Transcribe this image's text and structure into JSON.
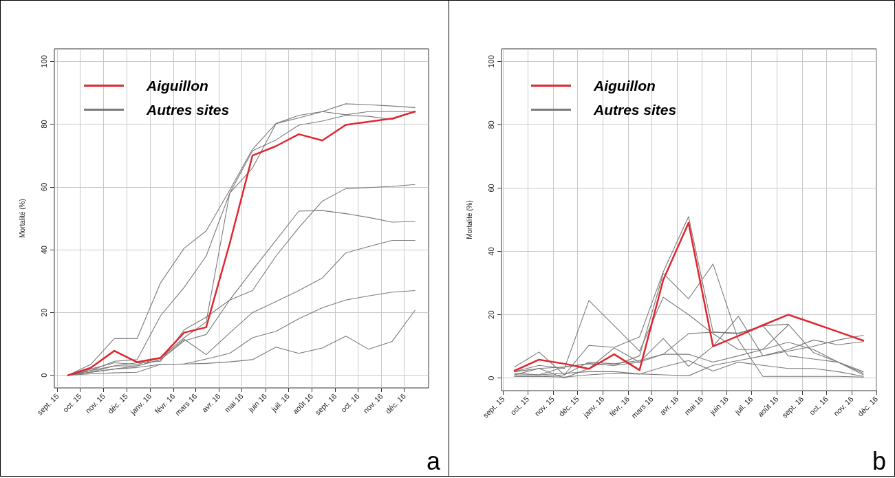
{
  "chart_data": [
    {
      "type": "line",
      "ylabel": "Mortalité (%)",
      "annotations": [
        "a"
      ],
      "grid": true,
      "legend": "top left",
      "marker": "none",
      "x": [
        "2015-09-15",
        "2015-10-15",
        "2015-11-15",
        "2015-12-15",
        "2016-01-15",
        "2016-02-15",
        "2016-03-15",
        "2016-04-15",
        "2016-05-15",
        "2016-06-15",
        "2016-07-15",
        "2016-08-15",
        "2016-09-15",
        "2016-10-15",
        "2016-11-15",
        "2016-12-15"
      ],
      "xlim": [
        "2015-08-28",
        "2017-01-02"
      ],
      "xticks": [
        {
          "value": "2015-09-01",
          "label": "sept. 15"
        },
        {
          "value": "2015-10-01",
          "label": "oct. 15"
        },
        {
          "value": "2015-11-01",
          "label": "nov. 15"
        },
        {
          "value": "2015-12-01",
          "label": "déc. 15"
        },
        {
          "value": "2016-01-01",
          "label": "janv. 16"
        },
        {
          "value": "2016-02-01",
          "label": "févr. 16"
        },
        {
          "value": "2016-03-01",
          "label": "mars 16"
        },
        {
          "value": "2016-04-01",
          "label": "avr. 16"
        },
        {
          "value": "2016-05-01",
          "label": "mai 16"
        },
        {
          "value": "2016-06-01",
          "label": "juin 16"
        },
        {
          "value": "2016-07-01",
          "label": "juil. 16"
        },
        {
          "value": "2016-08-01",
          "label": "août 16"
        },
        {
          "value": "2016-09-01",
          "label": "sept. 16"
        },
        {
          "value": "2016-10-01",
          "label": "oct. 16"
        },
        {
          "value": "2016-11-01",
          "label": "nov. 16"
        },
        {
          "value": "2016-12-01",
          "label": "déc. 16"
        }
      ],
      "ylim": [
        -4,
        104
      ],
      "yticks": [
        0,
        20,
        40,
        60,
        80,
        100
      ],
      "series": [
        {
          "name": "Aiguillon",
          "color": "#e0262e",
          "values": [
            0,
            2.4,
            7.8,
            4.2,
            5.6,
            13.6,
            15.3,
            42,
            70,
            73,
            76.8,
            74.8,
            79.8,
            80.8,
            81.8,
            84
          ]
        },
        {
          "name": "Autres sites",
          "color": "#7a7a7a",
          "values": [
            0,
            2,
            4,
            3.5,
            5.5,
            12,
            17,
            58,
            66,
            80.2,
            82.8,
            84,
            86.5,
            86.2,
            85.8,
            85.3
          ]
        },
        {
          "color": "#7a7a7a",
          "values": [
            0,
            3.5,
            11.7,
            11.7,
            29.5,
            40.5,
            46,
            59,
            72,
            80.2,
            82,
            84,
            83,
            84,
            84,
            84
          ]
        },
        {
          "color": "#7a7a7a",
          "values": [
            0,
            1.5,
            4.5,
            5,
            19,
            28,
            38,
            58,
            71.5,
            75,
            79.7,
            81,
            82.8,
            82.5,
            81.5,
            84
          ]
        },
        {
          "color": "#7a7a7a",
          "values": [
            0,
            1,
            2,
            3,
            5,
            11,
            13,
            24,
            27,
            38,
            47,
            55.5,
            59.5,
            59.8,
            60.2,
            60.8
          ]
        },
        {
          "color": "#7a7a7a",
          "values": [
            0,
            1,
            3,
            4,
            4.5,
            14.5,
            18.5,
            24,
            33.5,
            43,
            52.3,
            52.5,
            51.5,
            50.3,
            48.8,
            49
          ]
        },
        {
          "color": "#7a7a7a",
          "values": [
            0,
            1.5,
            3,
            3,
            5,
            11.5,
            6.6,
            13.5,
            20,
            23.5,
            27,
            31,
            39,
            41,
            43,
            43
          ]
        },
        {
          "color": "#7a7a7a",
          "values": [
            0,
            0.5,
            0.8,
            1,
            3.5,
            3.6,
            5.2,
            7,
            12,
            14,
            18,
            21.5,
            24,
            25.3,
            26.5,
            27
          ]
        },
        {
          "color": "#7a7a7a",
          "values": [
            0,
            1,
            2,
            2.5,
            3.5,
            3.6,
            3.8,
            4.3,
            5,
            9,
            7,
            8.7,
            12.5,
            8.3,
            10.8,
            20.7
          ]
        }
      ]
    },
    {
      "type": "line",
      "ylabel": "Mortalité (%)",
      "annotations": [
        "b"
      ],
      "grid": true,
      "legend": "top left",
      "marker": "none",
      "x": [
        "2015-09-15",
        "2015-10-15",
        "2015-11-15",
        "2015-12-15",
        "2016-01-15",
        "2016-02-15",
        "2016-03-15",
        "2016-04-15",
        "2016-05-15",
        "2016-06-15",
        "2016-07-15",
        "2016-08-15",
        "2016-09-15",
        "2016-10-15",
        "2016-11-15"
      ],
      "xlim": [
        "2015-08-30",
        "2016-12-01"
      ],
      "xticks": [
        {
          "value": "2015-09-01",
          "label": "sept. 15"
        },
        {
          "value": "2015-10-01",
          "label": "oct. 15"
        },
        {
          "value": "2015-11-01",
          "label": "nov. 15"
        },
        {
          "value": "2015-12-01",
          "label": "déc. 15"
        },
        {
          "value": "2016-01-01",
          "label": "janv. 16"
        },
        {
          "value": "2016-02-01",
          "label": "févr. 16"
        },
        {
          "value": "2016-03-01",
          "label": "mars 16"
        },
        {
          "value": "2016-04-01",
          "label": "avr. 16"
        },
        {
          "value": "2016-05-01",
          "label": "mai 16"
        },
        {
          "value": "2016-06-01",
          "label": "juin 16"
        },
        {
          "value": "2016-07-01",
          "label": "juil. 16"
        },
        {
          "value": "2016-08-01",
          "label": "août 16"
        },
        {
          "value": "2016-09-01",
          "label": "sept. 16"
        },
        {
          "value": "2016-10-01",
          "label": "oct. 16"
        },
        {
          "value": "2016-11-01",
          "label": "nov. 16"
        },
        {
          "value": "2016-12-01",
          "label": "déc. 16"
        }
      ],
      "ylim": [
        -4,
        104
      ],
      "yticks": [
        0,
        20,
        40,
        60,
        80,
        100
      ],
      "series": [
        {
          "name": "Aiguillon",
          "color": "#e0262e",
          "values": [
            2.3,
            5.8,
            4.5,
            2.9,
            7.5,
            2.5,
            31,
            49,
            10,
            13.3,
            16.7,
            20,
            17.3,
            14.6,
            11.8
          ]
        },
        {
          "name": "Autres sites",
          "color": "#7a7a7a",
          "values": [
            3.5,
            8.2,
            1,
            10.3,
            9.7,
            13,
            33.5,
            51,
            14.5,
            14,
            16.5,
            7,
            6,
            5,
            1
          ]
        },
        {
          "color": "#7a7a7a",
          "values": [
            2,
            4,
            3,
            24.5,
            16.5,
            8.5,
            25.5,
            20,
            14,
            9,
            9,
            11.3,
            9,
            5,
            2
          ]
        },
        {
          "color": "#7a7a7a",
          "values": [
            1.5,
            1,
            3.5,
            4.5,
            4,
            7,
            33,
            25,
            36,
            12,
            0.5,
            0.5,
            0.5,
            0.5,
            0.3
          ]
        },
        {
          "color": "#7a7a7a",
          "values": [
            1,
            3,
            0,
            3,
            9.5,
            5,
            12.5,
            3.7,
            10,
            19.5,
            7,
            9,
            12,
            10.5,
            11.5
          ]
        },
        {
          "color": "#7a7a7a",
          "values": [
            0.5,
            0.5,
            1,
            5,
            4.5,
            5.5,
            7.5,
            14,
            14.5,
            14.2,
            16.5,
            17,
            8,
            5,
            1.5
          ]
        },
        {
          "color": "#7a7a7a",
          "values": [
            2,
            3,
            3.5,
            4.5,
            4,
            5,
            7.5,
            7.5,
            5,
            7,
            9,
            16.7,
            null,
            null,
            null
          ]
        },
        {
          "color": "#7a7a7a",
          "values": [
            0.5,
            0.5,
            0.3,
            1,
            1.5,
            1.2,
            3.5,
            5.5,
            2.2,
            5,
            4,
            3,
            3,
            2,
            0.5
          ]
        },
        {
          "color": "#7a7a7a",
          "values": [
            1,
            1,
            1.5,
            2,
            2,
            1.3,
            1,
            0.7,
            4,
            5.5,
            7,
            8.5,
            10,
            12,
            13.5
          ]
        }
      ]
    }
  ]
}
